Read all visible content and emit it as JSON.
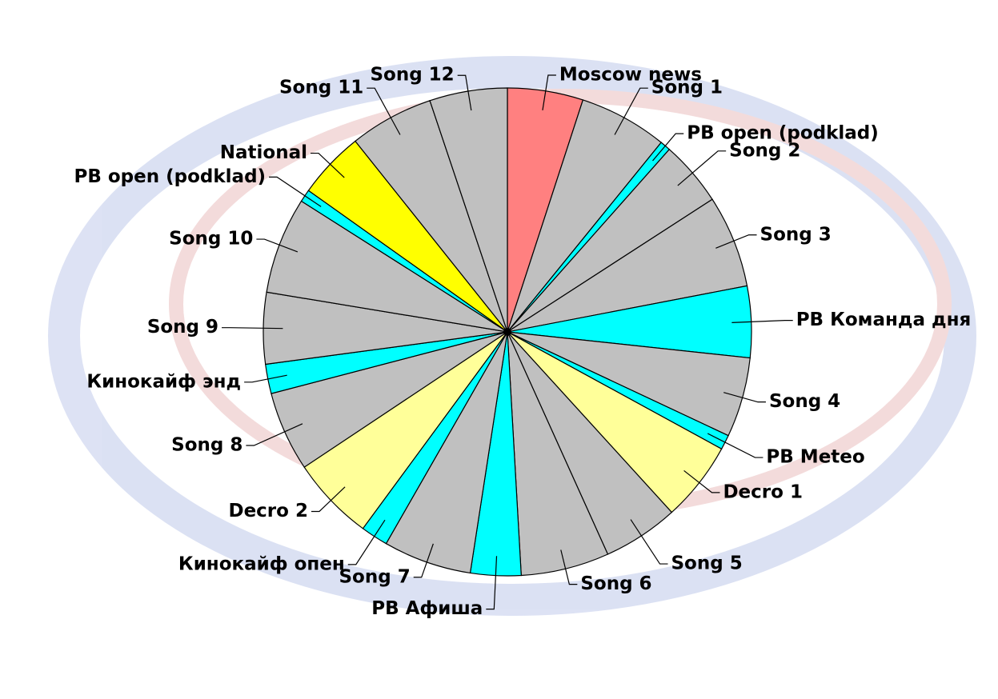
{
  "chart_data": {
    "type": "pie",
    "categories": [
      "Moscow news",
      "Song 1",
      "PB open (podklad)",
      "Song 2",
      "Song 3",
      "PB Команда дня",
      "Song 4",
      "PB Meteo",
      "Decro 1",
      "Song 5",
      "Song 6",
      "PB Афиша",
      "Song 7",
      "Кинокайф опен",
      "Decro 2",
      "Song 8",
      "Кинокайф энд",
      "Song 9",
      "Song 10",
      "PB open (podklad)",
      "National",
      "Song 11",
      "Song 12"
    ],
    "values": [
      18,
      21,
      2.5,
      15.5,
      22,
      17,
      19,
      3.5,
      19,
      18,
      21,
      12,
      21,
      6.5,
      20,
      19,
      7,
      17,
      23,
      3,
      16,
      20,
      18.5
    ],
    "colors": [
      "#ff8080",
      "#c0c0c0",
      "#00ffff",
      "#c0c0c0",
      "#c0c0c0",
      "#00ffff",
      "#c0c0c0",
      "#00ffff",
      "#ffff99",
      "#c0c0c0",
      "#c0c0c0",
      "#00ffff",
      "#c0c0c0",
      "#00ffff",
      "#ffff99",
      "#c0c0c0",
      "#00ffff",
      "#c0c0c0",
      "#c0c0c0",
      "#00ffff",
      "#ffff00",
      "#c0c0c0",
      "#c0c0c0"
    ]
  }
}
